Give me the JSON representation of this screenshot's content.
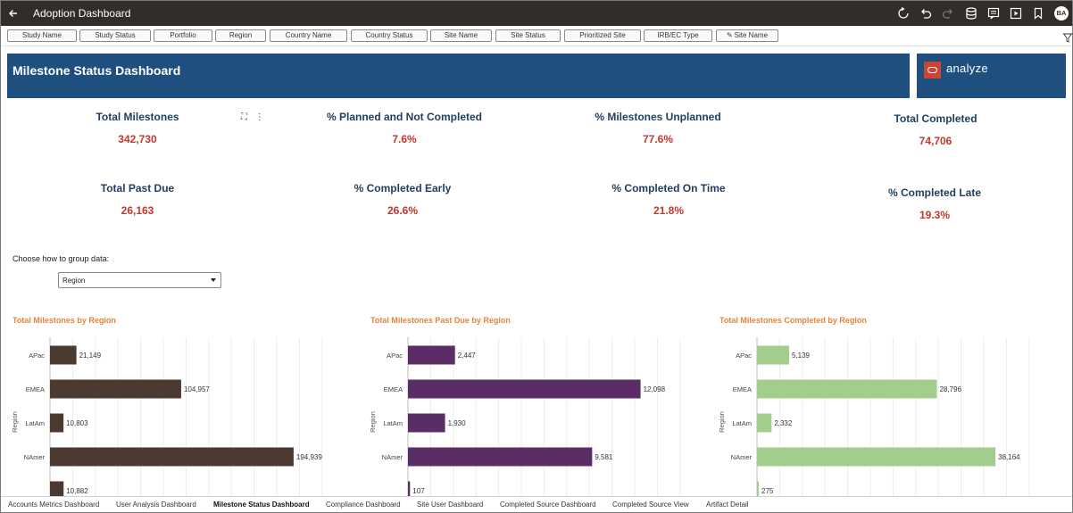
{
  "app": {
    "title": "Adoption Dashboard",
    "avatar_initials": "BA"
  },
  "toolbar_icons": [
    "refresh-icon",
    "undo-icon",
    "redo-icon",
    "data-icon",
    "narrative-icon",
    "present-icon",
    "bookmark-icon"
  ],
  "filters": [
    {
      "label": "Study Name"
    },
    {
      "label": "Study Status"
    },
    {
      "label": "Portfolio"
    },
    {
      "label": "Region"
    },
    {
      "label": "Country Name"
    },
    {
      "label": "Country Status"
    },
    {
      "label": "Site Name"
    },
    {
      "label": "Site Status"
    },
    {
      "label": "Prioritized Site"
    },
    {
      "label": "IRB/EC Type"
    },
    {
      "label": "Site Name",
      "pinned": true
    }
  ],
  "banner": {
    "title": "Milestone Status Dashboard",
    "brand": "analyze"
  },
  "kpis": [
    {
      "label": "Total Milestones",
      "value": "342,730"
    },
    {
      "label": "% Planned and Not Completed",
      "value": "7.6%"
    },
    {
      "label": "% Milestones Unplanned",
      "value": "77.6%"
    },
    {
      "label": "Total Completed",
      "value": "74,706"
    },
    {
      "label": "Total Past Due",
      "value": "26,163"
    },
    {
      "label": "% Completed Early",
      "value": "26.6%"
    },
    {
      "label": "% Completed On Time",
      "value": "21.8%"
    },
    {
      "label": "% Completed Late",
      "value": "19.3%"
    }
  ],
  "group_by": {
    "label": "Choose how to group data:",
    "selected": "Region"
  },
  "colors": {
    "header": "#1f4f7f",
    "accent_title": "#e8823a",
    "kpi_value": "#c0392b",
    "kpi_label": "#1f3e5e"
  },
  "chart_data": [
    {
      "type": "bar",
      "orientation": "horizontal",
      "title": "Total Milestones by Region",
      "ylabel": "Region",
      "categories": [
        "APac",
        "EMEA",
        "LatAm",
        "NAmer",
        ""
      ],
      "values": [
        21149,
        104957,
        10803,
        194939,
        10882
      ],
      "labels": [
        "21,149",
        "104,957",
        "10,803",
        "194,939",
        "10,882"
      ],
      "xlim": [
        0,
        200000
      ],
      "color": "#4a3a30",
      "grid": true
    },
    {
      "type": "bar",
      "orientation": "horizontal",
      "title": "Total Milestones Past Due by Region",
      "ylabel": "Region",
      "categories": [
        "APac",
        "EMEA",
        "LatAm",
        "NAmer",
        ""
      ],
      "values": [
        2447,
        12098,
        1930,
        9581,
        107
      ],
      "labels": [
        "2,447",
        "12,098",
        "1,930",
        "9,581",
        "107"
      ],
      "xlim": [
        0,
        13000
      ],
      "color": "#5a2d66",
      "grid": true
    },
    {
      "type": "bar",
      "orientation": "horizontal",
      "title": "Total Milestones Completed by Region",
      "ylabel": "Region",
      "categories": [
        "APac",
        "EMEA",
        "LatAm",
        "NAmer",
        ""
      ],
      "values": [
        5139,
        28796,
        2332,
        38164,
        275
      ],
      "labels": [
        "5,139",
        "28,796",
        "2,332",
        "38,164",
        "275"
      ],
      "xlim": [
        0,
        40000
      ],
      "color": "#a3cd8c",
      "grid": true
    }
  ],
  "bottom_tabs": [
    {
      "label": "Accounts Metrics Dashboard"
    },
    {
      "label": "User Analysis Dashboard"
    },
    {
      "label": "Milestone Status Dashboard",
      "active": true
    },
    {
      "label": "Compliance Dashboard"
    },
    {
      "label": "Site User Dashboard"
    },
    {
      "label": "Completed Source Dashboard"
    },
    {
      "label": "Completed Source View"
    },
    {
      "label": "Artifact Detail"
    }
  ]
}
